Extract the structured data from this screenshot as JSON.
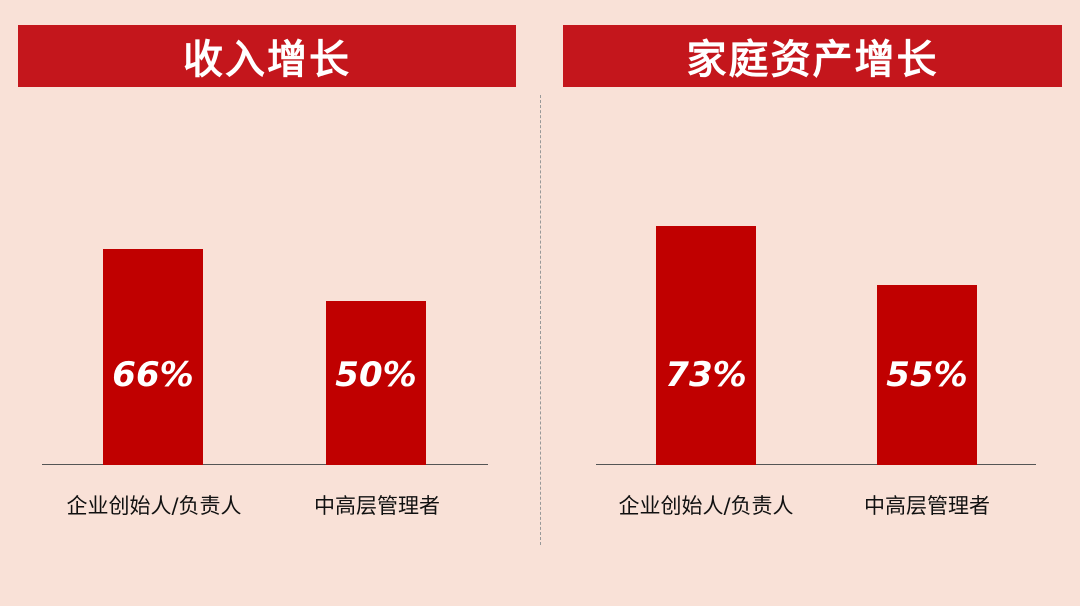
{
  "colors": {
    "background": "#f9e1d7",
    "header": "#c4161c",
    "bar": "#c00000"
  },
  "chart_data": [
    {
      "type": "bar",
      "title": "收入增长",
      "categories": [
        "企业创始人/负责人",
        "中高层管理者"
      ],
      "values": [
        66,
        50
      ],
      "data_labels": [
        "66%",
        "50%"
      ],
      "ylim": [
        0,
        100
      ],
      "grid": false
    },
    {
      "type": "bar",
      "title": "家庭资产增长",
      "categories": [
        "企业创始人/负责人",
        "中高层管理者"
      ],
      "values": [
        73,
        55
      ],
      "data_labels": [
        "73%",
        "55%"
      ],
      "ylim": [
        0,
        100
      ],
      "grid": false
    }
  ]
}
